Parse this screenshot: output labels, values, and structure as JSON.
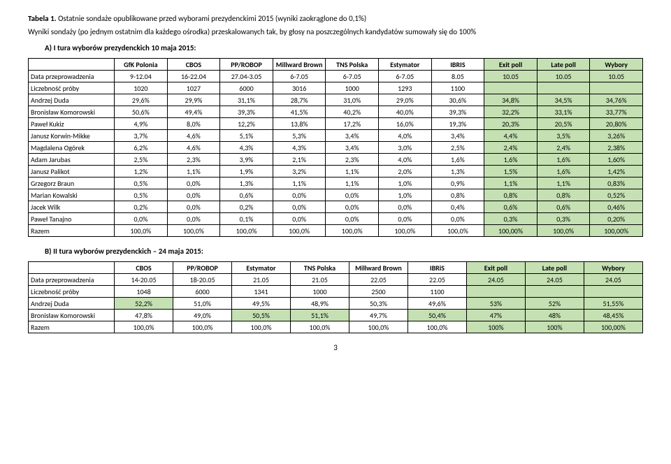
{
  "header": {
    "title_prefix": "Tabela 1. ",
    "title_rest": "Ostatnie sondaże opublikowane przed wyborami prezydenckimi 2015 (wyniki  zaokrąglone do 0,1%)",
    "subtitle": "Wyniki sondaży (po jednym ostatnim dla każdego ośrodka) przeskalowanych tak, by głosy na poszczególnych kandydatów sumowały się do 100%"
  },
  "sectionA": {
    "label": "A)   I tura wyborów prezydenckich 10 maja 2015:",
    "highlight_color": "#c5e0b3",
    "columns": [
      "",
      "GfK Polonia",
      "CBOS",
      "PP/ROBOP",
      "Millward Brown",
      "TNS Polska",
      "Estymator",
      "IBRIS",
      "Exit poll",
      "Late poll",
      "Wybory"
    ],
    "data_row_label": "Data przeprowadzenia",
    "data_row": [
      "9-12.04",
      "16-22.04",
      "27.04-3.05",
      "6-7.05",
      "6-7.05",
      "6-7.05",
      "8.05",
      "10.05",
      "10.05",
      "10.05"
    ],
    "size_row_label": "Liczebność próby",
    "size_row": [
      "1020",
      "1027",
      "6000",
      "3016",
      "1000",
      "1293",
      "1100",
      "",
      "",
      ""
    ],
    "rows": [
      {
        "label": "Andrzej Duda",
        "v": [
          "29,6%",
          "29,9%",
          "31,1%",
          "28,7%",
          "31,0%",
          "29,0%",
          "30,6%",
          "34,8%",
          "34,5%",
          "34,76%"
        ]
      },
      {
        "label": "Bronisław Komorowski",
        "v": [
          "50,6%",
          "49,4%",
          "39,3%",
          "41,5%",
          "40,2%",
          "40,0%",
          "39,3%",
          "32,2%",
          "33,1%",
          "33,77%"
        ]
      },
      {
        "label": "Paweł Kukiz",
        "v": [
          "4,9%",
          "8,0%",
          "12,2%",
          "13,8%",
          "17,2%",
          "16,0%",
          "19,3%",
          "20,3%",
          "20,5%",
          "20,80%"
        ]
      },
      {
        "label": "Janusz Korwin-Mikke",
        "v": [
          "3,7%",
          "4,6%",
          "5,1%",
          "5,3%",
          "3,4%",
          "4,0%",
          "3,4%",
          "4,4%",
          "3,5%",
          "3,26%"
        ]
      },
      {
        "label": "Magdalena Ogórek",
        "v": [
          "6,2%",
          "4,6%",
          "4,3%",
          "4,3%",
          "3,4%",
          "3,0%",
          "2,5%",
          "2,4%",
          "2,4%",
          "2,38%"
        ]
      },
      {
        "label": "Adam Jarubas",
        "v": [
          "2,5%",
          "2,3%",
          "3,9%",
          "2,1%",
          "2,3%",
          "4,0%",
          "1,6%",
          "1,6%",
          "1,6%",
          "1,60%"
        ]
      },
      {
        "label": "Janusz Palikot",
        "v": [
          "1,2%",
          "1,1%",
          "1,9%",
          "3,2%",
          "1,1%",
          "2,0%",
          "1,3%",
          "1,5%",
          "1,6%",
          "1,42%"
        ]
      },
      {
        "label": "Grzegorz Braun",
        "v": [
          "0,5%",
          "0,0%",
          "1,3%",
          "1,1%",
          "1,1%",
          "1,0%",
          "0,9%",
          "1,1%",
          "1,1%",
          "0,83%"
        ]
      },
      {
        "label": "Marian Kowalski",
        "v": [
          "0,5%",
          "0,0%",
          "0,6%",
          "0,0%",
          "0,0%",
          "1,0%",
          "0,8%",
          "0,8%",
          "0,8%",
          "0,52%"
        ]
      },
      {
        "label": "Jacek Wilk",
        "v": [
          "0,2%",
          "0,0%",
          "0,2%",
          "0,0%",
          "0,0%",
          "0,0%",
          "0,4%",
          "0,6%",
          "0,6%",
          "0,46%"
        ]
      },
      {
        "label": "Paweł Tanajno",
        "v": [
          "0,0%",
          "0,0%",
          "0,1%",
          "0,0%",
          "0,0%",
          "0,0%",
          "0,0%",
          "0,3%",
          "0,3%",
          "0,20%"
        ]
      },
      {
        "label": "Razem",
        "v": [
          "100,0%",
          "100,0%",
          "100,0%",
          "100,0%",
          "100,0%",
          "100,0%",
          "100,0%",
          "100,00%",
          "100,0%",
          "100,00%"
        ]
      }
    ],
    "highlight_cols": [
      8,
      9,
      10
    ]
  },
  "sectionB": {
    "label": "B)   II tura wyborów prezydenckich – 24 maja 2015:",
    "highlight_color": "#c5e0b3",
    "columns": [
      "",
      "CBOS",
      "PP/ROBOP",
      "Estymator",
      "TNS Polska",
      "Millward Brown",
      "IBRiS",
      "Exit poll",
      "Late poll",
      "Wybory"
    ],
    "data_row_label": "Data przeprowadzenia",
    "data_row": [
      "14-20.05",
      "18-20.05",
      "21.05",
      "21.05",
      "22.05",
      "22.05",
      "24.05",
      "24.05",
      "24.05"
    ],
    "size_row_label": "Liczebność próby",
    "size_row": [
      "1048",
      "6000",
      "1341",
      "1000",
      "2500",
      "1100",
      "",
      "",
      ""
    ],
    "rows": [
      {
        "label": "Andrzej Duda",
        "v": [
          "52,2%",
          "51,0%",
          "49,5%",
          "48,9%",
          "50,3%",
          "49,6%",
          "53%",
          "52%",
          "51,55%"
        ],
        "row_hl": [
          1
        ]
      },
      {
        "label": "Bronisław Komorowski",
        "v": [
          "47,8%",
          "49,0%",
          "50,5%",
          "51,1%",
          "49,7%",
          "50,4%",
          "47%",
          "48%",
          "48,45%"
        ],
        "row_hl": [
          3,
          4,
          6
        ]
      },
      {
        "label": "Razem",
        "v": [
          "100,0%",
          "100,0%",
          "100,0%",
          "100,0%",
          "100,0%",
          "100,0%",
          "100%",
          "100%",
          "100,00%"
        ]
      }
    ],
    "highlight_cols": [
      7,
      8,
      9
    ]
  },
  "page_number": "3"
}
